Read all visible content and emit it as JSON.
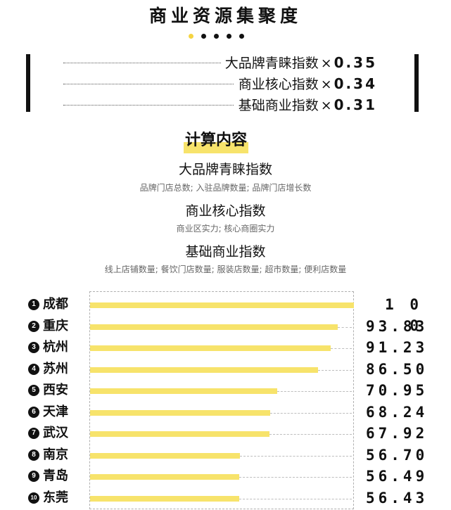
{
  "header": {
    "title": "商业资源集聚度"
  },
  "indices": [
    {
      "name": "大品牌青睐指数",
      "mult": "×",
      "weight": "0.35"
    },
    {
      "name": "商业核心指数",
      "mult": "×",
      "weight": "0.34"
    },
    {
      "name": "基础商业指数",
      "mult": "×",
      "weight": "0.31"
    }
  ],
  "calc": {
    "title": "计算内容",
    "items": [
      {
        "name": "大品牌青睐指数",
        "desc": "品牌门店总数; 入驻品牌数量; 品牌门店增长数"
      },
      {
        "name": "商业核心指数",
        "desc": "商业区实力; 核心商圈实力"
      },
      {
        "name": "基础商业指数",
        "desc": "线上店铺数量; 餐饮门店数量; 服装店数量; 超市数量; 便利店数量"
      }
    ]
  },
  "colors": {
    "bar": "#f7e36b",
    "accent": "#f5d442",
    "text": "#111111"
  },
  "chart_data": {
    "type": "bar",
    "orientation": "horizontal",
    "title": "",
    "xlim": [
      0,
      100
    ],
    "ranks": [
      "1",
      "2",
      "3",
      "4",
      "5",
      "6",
      "7",
      "8",
      "9",
      "10"
    ],
    "categories": [
      "成都",
      "重庆",
      "杭州",
      "苏州",
      "西安",
      "天津",
      "武汉",
      "南京",
      "青岛",
      "东莞"
    ],
    "values": [
      100,
      93.83,
      91.23,
      86.5,
      70.95,
      68.24,
      67.92,
      56.7,
      56.49,
      56.43
    ],
    "value_labels": [
      "1 0 0",
      "93.83",
      "91.23",
      "86.50",
      "70.95",
      "68.24",
      "67.92",
      "56.70",
      "56.49",
      "56.43"
    ]
  }
}
